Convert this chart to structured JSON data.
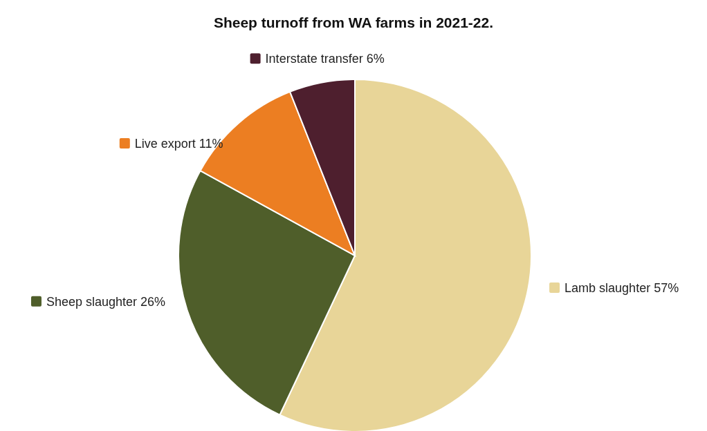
{
  "chart_data": {
    "type": "pie",
    "title": "Sheep turnoff from WA farms in 2021-22.",
    "categories": [
      "Lamb slaughter",
      "Sheep slaughter",
      "Live export",
      "Interstate transfer"
    ],
    "values": [
      57,
      26,
      11,
      6
    ],
    "value_labels": [
      "57%",
      "26%",
      "11%",
      "6%"
    ],
    "legend": "right",
    "colors": [
      "#e8d598",
      "#4f5e2a",
      "#ec7e22",
      "#4e1f2e"
    ]
  }
}
